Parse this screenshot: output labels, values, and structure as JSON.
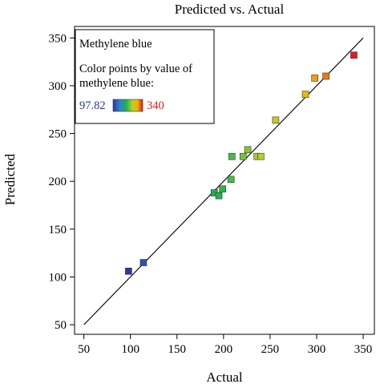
{
  "chart_data": {
    "type": "scatter",
    "title": "Predicted vs. Actual",
    "xlabel": "Actual",
    "ylabel": "Predicted",
    "xlim": [
      40,
      362
    ],
    "ylim": [
      40,
      362
    ],
    "xticks": [
      50,
      100,
      150,
      200,
      250,
      300,
      350
    ],
    "yticks": [
      50,
      100,
      150,
      200,
      250,
      300,
      350
    ],
    "xtick_labels": [
      "50",
      "100",
      "150",
      "200",
      "250",
      "300",
      "350"
    ],
    "ytick_labels": [
      "50",
      "100",
      "150",
      "200",
      "250",
      "300",
      "350"
    ],
    "reference_line": {
      "from": [
        50,
        50
      ],
      "to": [
        350,
        350
      ],
      "color": "#000000"
    },
    "legend": {
      "placement": "top-left",
      "title": "Methylene blue",
      "line1": "Color points by value of",
      "line2": "methylene blue:",
      "min_label": "97.82",
      "max_label": "340",
      "min_value": 97.82,
      "max_value": 340,
      "min_color": "#2b3a9a",
      "max_color": "#e31a1c"
    },
    "colormap": [
      "#2b3a9a",
      "#2f7fd4",
      "#20b34a",
      "#b7d12a",
      "#f2b400",
      "#e31a1c"
    ],
    "points": [
      {
        "x": 98,
        "y": 106
      },
      {
        "x": 114,
        "y": 115
      },
      {
        "x": 190,
        "y": 188
      },
      {
        "x": 195,
        "y": 185
      },
      {
        "x": 199,
        "y": 192
      },
      {
        "x": 208,
        "y": 202
      },
      {
        "x": 209,
        "y": 226
      },
      {
        "x": 221,
        "y": 226
      },
      {
        "x": 226,
        "y": 233
      },
      {
        "x": 236,
        "y": 226
      },
      {
        "x": 240,
        "y": 226
      },
      {
        "x": 256,
        "y": 264
      },
      {
        "x": 288,
        "y": 291
      },
      {
        "x": 298,
        "y": 308
      },
      {
        "x": 310,
        "y": 310
      },
      {
        "x": 340,
        "y": 332
      }
    ]
  }
}
